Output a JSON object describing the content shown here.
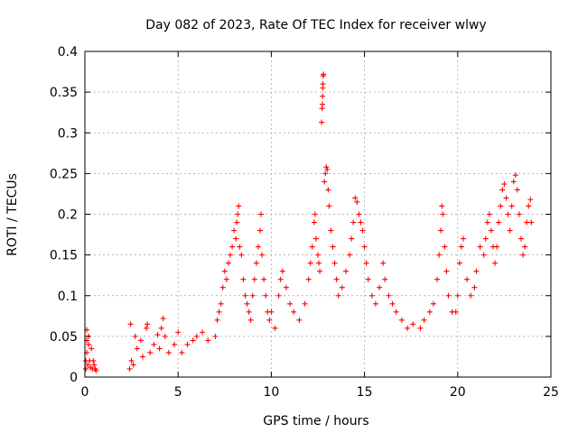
{
  "chart_data": {
    "type": "scatter",
    "title": "Day 082 of 2023, Rate Of TEC Index for receiver wlwy",
    "xlabel": "GPS time / hours",
    "ylabel": "ROTI / TECUs",
    "xlim": [
      0,
      25
    ],
    "ylim": [
      0,
      0.4
    ],
    "xticks": [
      0,
      5,
      10,
      15,
      20,
      25
    ],
    "yticks": [
      0,
      0.05,
      0.1,
      0.15,
      0.2,
      0.25,
      0.3,
      0.35,
      0.4
    ],
    "grid": true,
    "marker": "+",
    "colors": {
      "points": "#ff0000",
      "grid": "#a0a0a0",
      "axis": "#000000"
    },
    "series": [
      {
        "name": "ROTI",
        "data": [
          [
            0.05,
            0.01
          ],
          [
            0.05,
            0.02
          ],
          [
            0.1,
            0.03
          ],
          [
            0.1,
            0.045
          ],
          [
            0.1,
            0.058
          ],
          [
            0.15,
            0.015
          ],
          [
            0.2,
            0.04
          ],
          [
            0.2,
            0.05
          ],
          [
            0.25,
            0.02
          ],
          [
            0.3,
            0.012
          ],
          [
            0.35,
            0.035
          ],
          [
            0.4,
            0.01
          ],
          [
            0.45,
            0.02
          ],
          [
            0.5,
            0.015
          ],
          [
            0.55,
            0.01
          ],
          [
            0.6,
            0.008
          ],
          [
            2.4,
            0.01
          ],
          [
            2.45,
            0.065
          ],
          [
            2.5,
            0.02
          ],
          [
            2.6,
            0.015
          ],
          [
            2.7,
            0.05
          ],
          [
            2.8,
            0.035
          ],
          [
            3.0,
            0.045
          ],
          [
            3.1,
            0.025
          ],
          [
            3.3,
            0.06
          ],
          [
            3.35,
            0.065
          ],
          [
            3.5,
            0.03
          ],
          [
            3.7,
            0.04
          ],
          [
            3.9,
            0.052
          ],
          [
            4.0,
            0.035
          ],
          [
            4.1,
            0.06
          ],
          [
            4.2,
            0.072
          ],
          [
            4.3,
            0.05
          ],
          [
            4.5,
            0.03
          ],
          [
            4.8,
            0.04
          ],
          [
            5.0,
            0.055
          ],
          [
            5.2,
            0.03
          ],
          [
            5.5,
            0.04
          ],
          [
            5.8,
            0.045
          ],
          [
            6.0,
            0.05
          ],
          [
            6.3,
            0.055
          ],
          [
            6.6,
            0.045
          ],
          [
            7.0,
            0.05
          ],
          [
            7.1,
            0.07
          ],
          [
            7.2,
            0.08
          ],
          [
            7.3,
            0.09
          ],
          [
            7.4,
            0.11
          ],
          [
            7.5,
            0.13
          ],
          [
            7.6,
            0.12
          ],
          [
            7.7,
            0.14
          ],
          [
            7.8,
            0.15
          ],
          [
            7.9,
            0.16
          ],
          [
            8.0,
            0.18
          ],
          [
            8.1,
            0.17
          ],
          [
            8.15,
            0.19
          ],
          [
            8.2,
            0.2
          ],
          [
            8.25,
            0.21
          ],
          [
            8.3,
            0.16
          ],
          [
            8.4,
            0.15
          ],
          [
            8.5,
            0.12
          ],
          [
            8.6,
            0.1
          ],
          [
            8.7,
            0.09
          ],
          [
            8.8,
            0.08
          ],
          [
            8.9,
            0.07
          ],
          [
            9.0,
            0.1
          ],
          [
            9.1,
            0.12
          ],
          [
            9.2,
            0.14
          ],
          [
            9.3,
            0.16
          ],
          [
            9.4,
            0.18
          ],
          [
            9.45,
            0.2
          ],
          [
            9.5,
            0.15
          ],
          [
            9.6,
            0.12
          ],
          [
            9.7,
            0.1
          ],
          [
            9.8,
            0.08
          ],
          [
            9.9,
            0.07
          ],
          [
            10.0,
            0.08
          ],
          [
            10.2,
            0.06
          ],
          [
            10.4,
            0.1
          ],
          [
            10.5,
            0.12
          ],
          [
            10.6,
            0.13
          ],
          [
            10.8,
            0.11
          ],
          [
            11.0,
            0.09
          ],
          [
            11.2,
            0.08
          ],
          [
            11.5,
            0.07
          ],
          [
            11.8,
            0.09
          ],
          [
            12.0,
            0.12
          ],
          [
            12.1,
            0.14
          ],
          [
            12.2,
            0.16
          ],
          [
            12.3,
            0.19
          ],
          [
            12.35,
            0.2
          ],
          [
            12.4,
            0.17
          ],
          [
            12.5,
            0.15
          ],
          [
            12.55,
            0.14
          ],
          [
            12.6,
            0.13
          ],
          [
            12.7,
            0.313
          ],
          [
            12.72,
            0.33
          ],
          [
            12.74,
            0.335
          ],
          [
            12.75,
            0.345
          ],
          [
            12.76,
            0.355
          ],
          [
            12.77,
            0.36
          ],
          [
            12.78,
            0.37
          ],
          [
            12.8,
            0.372
          ],
          [
            12.85,
            0.24
          ],
          [
            12.9,
            0.25
          ],
          [
            12.95,
            0.258
          ],
          [
            13.0,
            0.255
          ],
          [
            13.05,
            0.23
          ],
          [
            13.1,
            0.21
          ],
          [
            13.2,
            0.18
          ],
          [
            13.3,
            0.16
          ],
          [
            13.4,
            0.14
          ],
          [
            13.5,
            0.12
          ],
          [
            13.6,
            0.1
          ],
          [
            13.8,
            0.11
          ],
          [
            14.0,
            0.13
          ],
          [
            14.2,
            0.15
          ],
          [
            14.3,
            0.17
          ],
          [
            14.4,
            0.19
          ],
          [
            14.5,
            0.22
          ],
          [
            14.6,
            0.215
          ],
          [
            14.7,
            0.2
          ],
          [
            14.8,
            0.19
          ],
          [
            14.9,
            0.18
          ],
          [
            15.0,
            0.16
          ],
          [
            15.1,
            0.14
          ],
          [
            15.2,
            0.12
          ],
          [
            15.4,
            0.1
          ],
          [
            15.6,
            0.09
          ],
          [
            15.8,
            0.11
          ],
          [
            16.0,
            0.14
          ],
          [
            16.1,
            0.12
          ],
          [
            16.3,
            0.1
          ],
          [
            16.5,
            0.09
          ],
          [
            16.7,
            0.08
          ],
          [
            17.0,
            0.07
          ],
          [
            17.3,
            0.06
          ],
          [
            17.6,
            0.065
          ],
          [
            18.0,
            0.06
          ],
          [
            18.2,
            0.07
          ],
          [
            18.5,
            0.08
          ],
          [
            18.7,
            0.09
          ],
          [
            18.9,
            0.12
          ],
          [
            19.0,
            0.15
          ],
          [
            19.1,
            0.18
          ],
          [
            19.15,
            0.21
          ],
          [
            19.2,
            0.2
          ],
          [
            19.3,
            0.16
          ],
          [
            19.4,
            0.13
          ],
          [
            19.5,
            0.1
          ],
          [
            19.7,
            0.08
          ],
          [
            19.9,
            0.08
          ],
          [
            20.0,
            0.1
          ],
          [
            20.1,
            0.14
          ],
          [
            20.2,
            0.16
          ],
          [
            20.3,
            0.17
          ],
          [
            20.5,
            0.12
          ],
          [
            20.7,
            0.1
          ],
          [
            20.9,
            0.11
          ],
          [
            21.0,
            0.13
          ],
          [
            21.2,
            0.16
          ],
          [
            21.4,
            0.15
          ],
          [
            21.5,
            0.17
          ],
          [
            21.6,
            0.19
          ],
          [
            21.7,
            0.2
          ],
          [
            21.8,
            0.18
          ],
          [
            21.9,
            0.16
          ],
          [
            22.0,
            0.14
          ],
          [
            22.1,
            0.16
          ],
          [
            22.2,
            0.19
          ],
          [
            22.3,
            0.21
          ],
          [
            22.4,
            0.23
          ],
          [
            22.5,
            0.237
          ],
          [
            22.6,
            0.22
          ],
          [
            22.7,
            0.2
          ],
          [
            22.8,
            0.18
          ],
          [
            22.9,
            0.21
          ],
          [
            23.0,
            0.24
          ],
          [
            23.1,
            0.248
          ],
          [
            23.2,
            0.23
          ],
          [
            23.3,
            0.2
          ],
          [
            23.4,
            0.17
          ],
          [
            23.5,
            0.15
          ],
          [
            23.6,
            0.16
          ],
          [
            23.7,
            0.19
          ],
          [
            23.8,
            0.21
          ],
          [
            23.9,
            0.218
          ],
          [
            23.95,
            0.19
          ]
        ]
      }
    ]
  }
}
